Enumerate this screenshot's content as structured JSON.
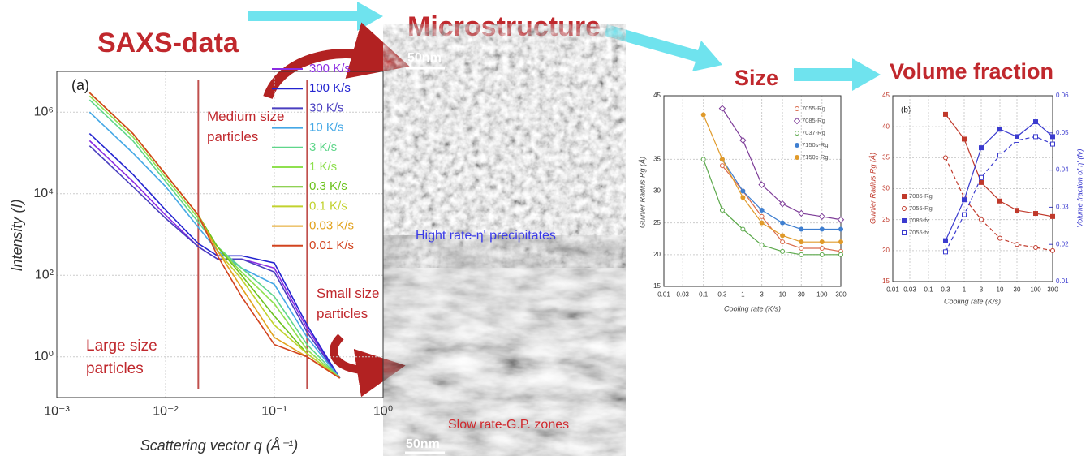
{
  "titles": {
    "saxs": "SAXS-data",
    "micro": "Microstructure",
    "size": "Size",
    "volume": "Volume fraction"
  },
  "images": {
    "top": {
      "scale": "50nm",
      "caption": "Hight rate-η' precipitates"
    },
    "bottom": {
      "scale": "50nm",
      "caption": "Slow rate-G.P. zones"
    }
  },
  "chart_data": [
    {
      "type": "line",
      "xlog": true,
      "ylog": true,
      "grid": true,
      "xlabel": "Scattering vector q (Å⁻¹)",
      "ylabel": "Intensity (I)",
      "annotations": [
        "(a)",
        "Medium size particles",
        "Large size particles",
        "Small size particles"
      ],
      "xlim": [
        0.001,
        1
      ],
      "ylim": [
        0.1,
        10000000
      ],
      "xticks": [
        {
          "value": 0.001,
          "label": "10⁻³"
        },
        {
          "value": 0.01,
          "label": "10⁻²"
        },
        {
          "value": 0.1,
          "label": "10⁻¹"
        },
        {
          "value": 1,
          "label": "10⁰"
        }
      ],
      "yticks": [
        {
          "value": 1,
          "label": "10⁰"
        },
        {
          "value": 100,
          "label": "10²"
        },
        {
          "value": 10000,
          "label": "10⁴"
        },
        {
          "value": 1000000,
          "label": "10⁶"
        }
      ],
      "markers_x": [
        0.02,
        0.2
      ],
      "markers_color": "#c0504d",
      "x": [
        0.002,
        0.005,
        0.01,
        0.02,
        0.03,
        0.05,
        0.1,
        0.2,
        0.4
      ],
      "series": [
        {
          "name": "300 K/s",
          "color": "#8a2be2",
          "values": [
            200000,
            20000,
            3000,
            500,
            250,
            250,
            150,
            5,
            0.3
          ]
        },
        {
          "name": "100 K/s",
          "color": "#2424d0",
          "values": [
            300000,
            30000,
            4000,
            600,
            300,
            300,
            200,
            6,
            0.3
          ]
        },
        {
          "name": "30 K/s",
          "color": "#4a3fc0",
          "values": [
            150000,
            15000,
            2500,
            500,
            250,
            250,
            120,
            4,
            0.3
          ]
        },
        {
          "name": "10 K/s",
          "color": "#45a8e6",
          "values": [
            1000000,
            100000,
            15000,
            1500,
            400,
            150,
            60,
            3,
            0.3
          ]
        },
        {
          "name": "3 K/s",
          "color": "#5fd68a",
          "values": [
            2000000,
            200000,
            20000,
            2000,
            500,
            150,
            30,
            2,
            0.3
          ]
        },
        {
          "name": "1 K/s",
          "color": "#8fe04f",
          "values": [
            2500000,
            250000,
            25000,
            2500,
            500,
            120,
            20,
            1.5,
            0.3
          ]
        },
        {
          "name": "0.3 K/s",
          "color": "#6cc21d",
          "values": [
            3000000,
            300000,
            30000,
            3000,
            500,
            100,
            10,
            1.2,
            0.3
          ]
        },
        {
          "name": "0.1 K/s",
          "color": "#c2d22e",
          "values": [
            3000000,
            300000,
            30000,
            3000,
            400,
            80,
            6,
            1.2,
            0.3
          ]
        },
        {
          "name": "0.03 K/s",
          "color": "#e2a21e",
          "values": [
            3000000,
            300000,
            30000,
            3000,
            400,
            50,
            3,
            1,
            0.3
          ]
        },
        {
          "name": "0.01 K/s",
          "color": "#d2441f",
          "values": [
            3000000,
            300000,
            30000,
            3000,
            300,
            30,
            2,
            1,
            0.3
          ]
        }
      ]
    },
    {
      "type": "scatter",
      "xlog": true,
      "grid": true,
      "xlabel": "Cooling rate (K/s)",
      "ylabel": "Guinier Radius Rg (Å)",
      "xlim": [
        0.01,
        300
      ],
      "ylim": [
        15,
        45
      ],
      "xticks": [
        0.01,
        0.03,
        0.1,
        0.3,
        1,
        3,
        10,
        30,
        100,
        300
      ],
      "yticks": [
        15,
        20,
        25,
        30,
        35,
        45
      ],
      "x": [
        0.1,
        0.3,
        1,
        3,
        10,
        30,
        100,
        300
      ],
      "series": [
        {
          "name": "7055-Rg",
          "color": "#d9694a",
          "marker": "circle",
          "filled": false,
          "values": [
            null,
            34,
            30,
            26,
            22,
            21,
            21,
            20.5
          ]
        },
        {
          "name": "7085-Rg",
          "color": "#7d3c98",
          "marker": "diamond",
          "filled": false,
          "values": [
            null,
            43,
            38,
            31,
            28,
            26.5,
            26,
            25.5
          ]
        },
        {
          "name": "7037-Rg",
          "color": "#5ba84a",
          "marker": "circle",
          "filled": false,
          "values": [
            35,
            27,
            24,
            21.5,
            20.5,
            20,
            20,
            20
          ]
        },
        {
          "name": "7150s-Rg",
          "color": "#3f7fd0",
          "marker": "circle",
          "filled": true,
          "values": [
            null,
            35,
            30,
            27,
            25,
            24,
            24,
            24
          ]
        },
        {
          "name": "7150c-Rg",
          "color": "#e09a2a",
          "marker": "circle",
          "filled": true,
          "values": [
            42,
            35,
            29,
            25,
            23,
            22,
            22,
            22
          ]
        }
      ]
    },
    {
      "type": "scatter",
      "xlog": true,
      "grid": true,
      "annotations": [
        "(b)"
      ],
      "xlabel": "Cooling rate (K/s)",
      "ylabel": "Guinier Radius Rg (Å)",
      "y2label": "Volume fraction of η' (fv)",
      "ytick_color": "#c0392b",
      "y2tick_color": "#3b3bcf",
      "xlim": [
        0.01,
        300
      ],
      "ylim": [
        15,
        45
      ],
      "y2lim": [
        0.01,
        0.06
      ],
      "xticks": [
        0.01,
        0.03,
        0.1,
        0.3,
        1,
        3,
        10,
        30,
        100,
        300
      ],
      "yticks": [
        15,
        20,
        25,
        30,
        35,
        40,
        45
      ],
      "y2ticks": [
        0.01,
        0.02,
        0.03,
        0.04,
        0.05,
        0.06
      ],
      "x": [
        0.3,
        1,
        3,
        10,
        30,
        100,
        300
      ],
      "series": [
        {
          "name": "7085-Rg",
          "color": "#c0392b",
          "marker": "square",
          "filled": true,
          "dash": false,
          "values": [
            42,
            38,
            31,
            28,
            26.5,
            26,
            25.5
          ]
        },
        {
          "name": "7055-Rg",
          "color": "#c0392b",
          "marker": "circle",
          "filled": false,
          "dash": true,
          "values": [
            35,
            28.5,
            25,
            22,
            21,
            20.5,
            20
          ]
        },
        {
          "name": "7085-fv",
          "color": "#3b3bcf",
          "marker": "square",
          "filled": true,
          "dash": false,
          "axis": "y2",
          "values": [
            0.021,
            0.032,
            0.046,
            0.051,
            0.049,
            0.053,
            0.049
          ]
        },
        {
          "name": "7055-fv",
          "color": "#3b3bcf",
          "marker": "square",
          "filled": false,
          "dash": true,
          "axis": "y2",
          "values": [
            0.018,
            0.028,
            0.038,
            0.044,
            0.048,
            0.049,
            0.047
          ]
        }
      ]
    }
  ]
}
